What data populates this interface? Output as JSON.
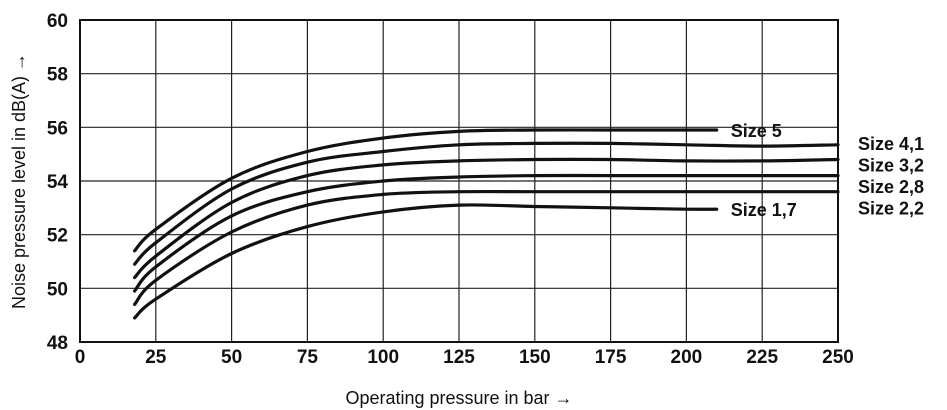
{
  "chart_data": {
    "type": "line",
    "xlabel": "Operating pressure in bar →",
    "ylabel": "Noise pressure level in dB(A) →",
    "xlim": [
      0,
      250
    ],
    "ylim": [
      48,
      60
    ],
    "xticks": [
      0,
      25,
      50,
      75,
      100,
      125,
      150,
      175,
      200,
      225,
      250
    ],
    "yticks": [
      48,
      50,
      52,
      54,
      56,
      58,
      60
    ],
    "grid": true,
    "line_color": "#111111",
    "series": [
      {
        "name": "Size 5",
        "x": [
          18,
          25,
          50,
          75,
          100,
          125,
          150,
          175,
          200,
          210
        ],
        "y": [
          51.4,
          52.2,
          54.1,
          55.1,
          55.6,
          55.85,
          55.9,
          55.9,
          55.9,
          55.9
        ]
      },
      {
        "name": "Size 4,1",
        "x": [
          18,
          25,
          50,
          75,
          100,
          125,
          150,
          175,
          200,
          225,
          250
        ],
        "y": [
          50.9,
          51.7,
          53.7,
          54.7,
          55.1,
          55.35,
          55.4,
          55.4,
          55.35,
          55.3,
          55.35
        ]
      },
      {
        "name": "Size 3,2",
        "x": [
          18,
          25,
          50,
          75,
          100,
          125,
          150,
          175,
          200,
          225,
          250
        ],
        "y": [
          50.4,
          51.2,
          53.2,
          54.2,
          54.6,
          54.75,
          54.8,
          54.8,
          54.75,
          54.75,
          54.8
        ]
      },
      {
        "name": "Size 2,8",
        "x": [
          18,
          25,
          50,
          75,
          100,
          125,
          150,
          175,
          200,
          225,
          250
        ],
        "y": [
          49.9,
          50.8,
          52.7,
          53.6,
          54.0,
          54.15,
          54.2,
          54.2,
          54.2,
          54.2,
          54.2
        ]
      },
      {
        "name": "Size 2,2",
        "x": [
          18,
          25,
          50,
          75,
          100,
          125,
          150,
          175,
          200,
          225,
          250
        ],
        "y": [
          49.4,
          50.3,
          52.1,
          53.1,
          53.5,
          53.6,
          53.6,
          53.6,
          53.6,
          53.6,
          53.6
        ]
      },
      {
        "name": "Size 1,7",
        "x": [
          18,
          25,
          50,
          75,
          100,
          125,
          150,
          175,
          200,
          210
        ],
        "y": [
          48.9,
          49.6,
          51.3,
          52.3,
          52.85,
          53.1,
          53.05,
          53.0,
          52.95,
          52.95
        ]
      }
    ]
  }
}
